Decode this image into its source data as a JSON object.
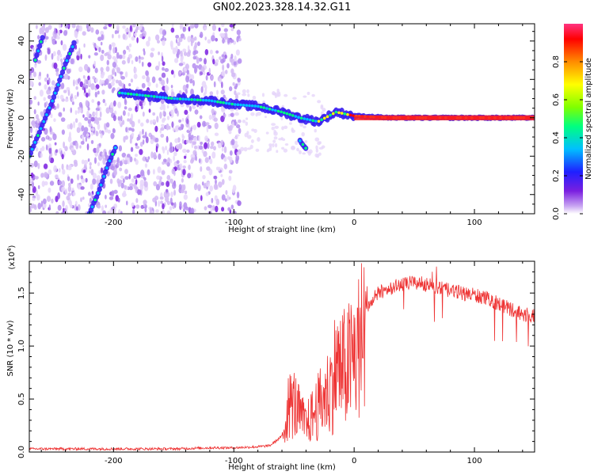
{
  "title": "GN02.2023.328.14.32.G11",
  "chart_data": [
    {
      "type": "heatmap",
      "xlabel": "Height of straight line (km)",
      "ylabel": "Frequency (Hz)",
      "xlim": [
        -270,
        150
      ],
      "ylim": [
        -50,
        49
      ],
      "xticks": [
        -200,
        -100,
        0,
        100
      ],
      "yticks": [
        -40,
        -20,
        0,
        20,
        40
      ],
      "colorbar": {
        "label": "Normalized spectral amplitude",
        "range": [
          0.0,
          1.0
        ],
        "ticks": [
          "0.0",
          "0.2",
          "0.4",
          "0.6",
          "0.8"
        ],
        "colormap": [
          "#ffffff",
          "#c9a6f2",
          "#7a1fe0",
          "#1f1fff",
          "#00bfff",
          "#00ff80",
          "#7fff00",
          "#ffff00",
          "#ff8c00",
          "#ff0000",
          "#ff3380"
        ]
      },
      "traces": [
        {
          "name_hint": "",
          "x": [
            -270,
            -260,
            -250,
            -240,
            -232
          ],
          "y": [
            -20,
            -5,
            10,
            28,
            40
          ]
        },
        {
          "name_hint": "",
          "x": [
            -265,
            -258
          ],
          "y": [
            30,
            44
          ]
        },
        {
          "name_hint": "",
          "x": [
            -220,
            -212,
            -205,
            -198
          ],
          "y": [
            -50,
            -38,
            -25,
            -15
          ]
        },
        {
          "name_hint": "",
          "x": [
            -195,
            -150,
            -120,
            -100,
            -80,
            -60,
            -45,
            -30,
            -15,
            0,
            30,
            100,
            150
          ],
          "y": [
            13,
            10,
            9,
            7,
            6,
            3,
            0,
            -2,
            3,
            1,
            0,
            0,
            0
          ]
        },
        {
          "name_hint": "",
          "x": [
            -45,
            -40
          ],
          "y": [
            -12,
            -16
          ]
        }
      ]
    },
    {
      "type": "line",
      "xlabel": "Height of straight line (km)",
      "ylabel": "SNR (10 * v/v)",
      "multiplier_label": "(x10",
      "multiplier_exp": "4",
      "multiplier_close": ")",
      "xlim": [
        -270,
        150
      ],
      "ylim": [
        0.0,
        1.8
      ],
      "xticks": [
        -200,
        -100,
        0,
        100
      ],
      "yticks": [
        "0.0",
        "0.5",
        "1.0",
        "1.5"
      ],
      "color": "#ee3333",
      "series": [
        {
          "x": [
            -270,
            -250,
            -230,
            -200,
            -180,
            -150,
            -120,
            -100,
            -80,
            -70,
            -60,
            -55,
            -50,
            -45,
            -40,
            -35,
            -30,
            -25,
            -20,
            -15,
            -10,
            -5,
            0,
            5,
            10,
            20,
            30,
            40,
            50,
            60,
            70,
            80,
            90,
            100,
            110,
            120,
            130,
            140,
            150
          ],
          "y": [
            0.03,
            0.03,
            0.03,
            0.03,
            0.03,
            0.03,
            0.04,
            0.04,
            0.05,
            0.06,
            0.15,
            0.5,
            0.55,
            0.4,
            0.3,
            0.4,
            0.5,
            0.6,
            0.7,
            0.95,
            0.9,
            0.95,
            1.05,
            1.2,
            1.35,
            1.5,
            1.55,
            1.58,
            1.6,
            1.58,
            1.55,
            1.52,
            1.5,
            1.48,
            1.45,
            1.4,
            1.35,
            1.3,
            1.28
          ]
        }
      ]
    }
  ]
}
